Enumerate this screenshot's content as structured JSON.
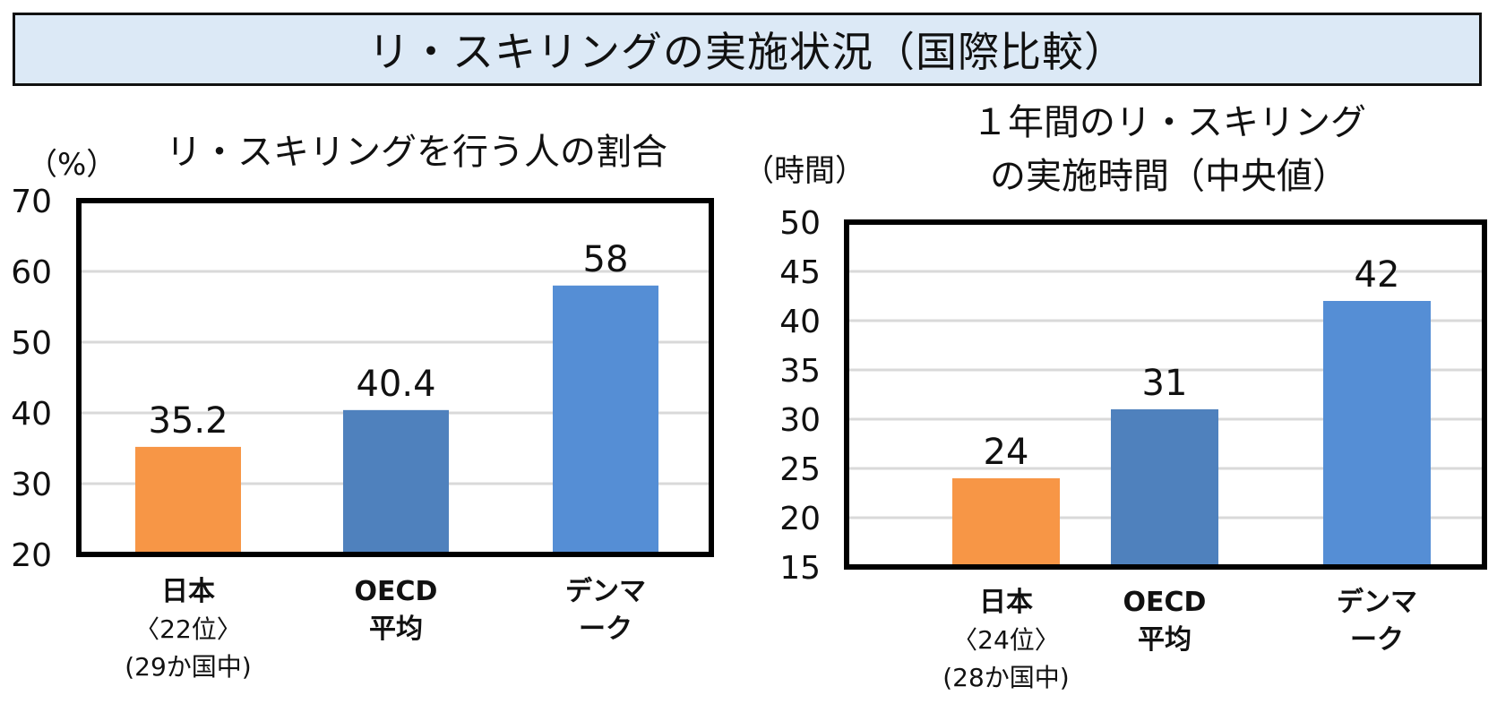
{
  "page_title": "リ・スキリングの実施状況（国際比較）",
  "chart_data": [
    {
      "type": "bar",
      "title_lines": [
        "リ・スキリングを行う人の割合"
      ],
      "ylabel": "（%）",
      "ylim": [
        20,
        70
      ],
      "yticks": [
        20,
        30,
        40,
        50,
        60,
        70
      ],
      "categories": [
        {
          "lines": [
            "日本"
          ],
          "sub": [
            "〈22位〉",
            "(29か国中)"
          ]
        },
        {
          "lines": [
            "OECD",
            "平均"
          ],
          "sub": []
        },
        {
          "lines": [
            "デンマ",
            "ーク"
          ],
          "sub": []
        }
      ],
      "values": [
        35.2,
        40.4,
        58
      ],
      "value_labels": [
        "35.2",
        "40.4",
        "58"
      ],
      "colors": [
        "#f79646",
        "#4f81bd",
        "#558ed5"
      ],
      "grid": true
    },
    {
      "type": "bar",
      "title_lines": [
        "１年間のリ・スキリング",
        "の実施時間（中央値）"
      ],
      "ylabel": "（時間）",
      "ylim": [
        15,
        50
      ],
      "yticks": [
        15,
        20,
        25,
        30,
        35,
        40,
        45,
        50
      ],
      "categories": [
        {
          "lines": [
            "日本"
          ],
          "sub": [
            "〈24位〉",
            "(28か国中)"
          ]
        },
        {
          "lines": [
            "OECD",
            "平均"
          ],
          "sub": []
        },
        {
          "lines": [
            "デンマ",
            "ーク"
          ],
          "sub": []
        }
      ],
      "values": [
        24,
        31,
        42
      ],
      "value_labels": [
        "24",
        "31",
        "42"
      ],
      "colors": [
        "#f79646",
        "#4f81bd",
        "#558ed5"
      ],
      "grid": true
    }
  ]
}
